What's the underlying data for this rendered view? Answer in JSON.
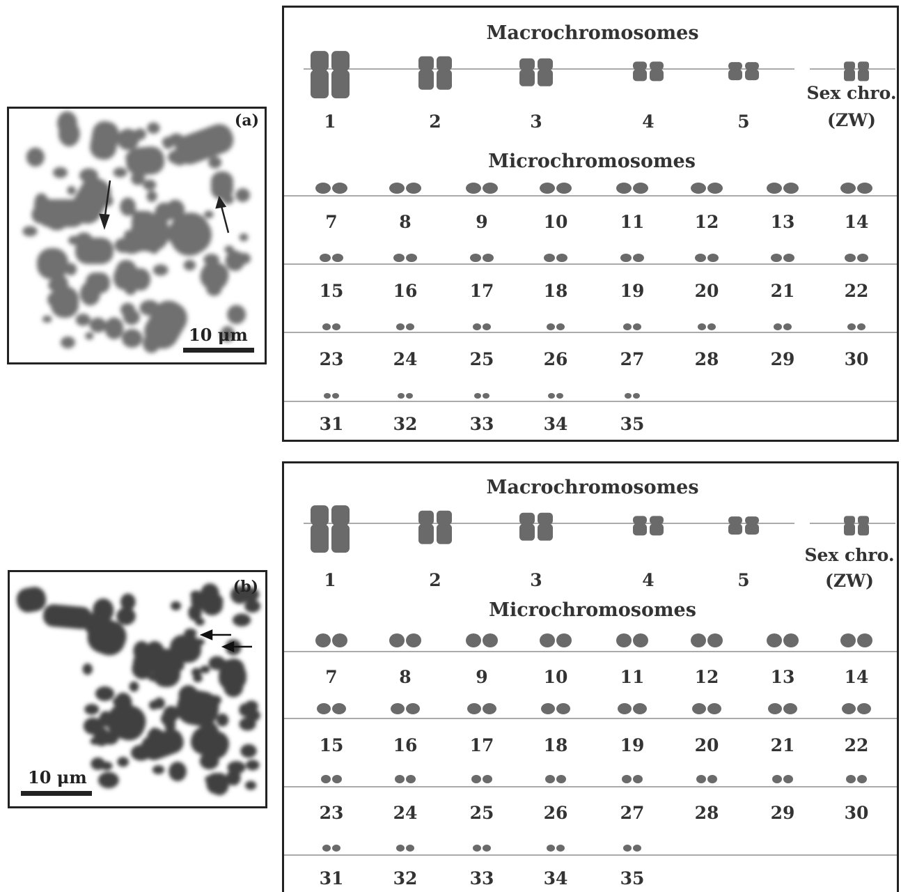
{
  "panel_a": {
    "label": "(a)",
    "scale": "10 μm"
  },
  "panel_b": {
    "label": "(b)",
    "scale": "10 μm"
  },
  "karyotype": {
    "macro_title": "Macrochromosomes",
    "micro_title": "Microchromosomes",
    "macro_numbers": [
      "1",
      "2",
      "3",
      "4",
      "5"
    ],
    "sex_label_1": "Sex chro.",
    "sex_label_2": "(ZW)",
    "micro_rows": [
      [
        "7",
        "8",
        "9",
        "10",
        "11",
        "12",
        "13",
        "14"
      ],
      [
        "15",
        "16",
        "17",
        "18",
        "19",
        "20",
        "21",
        "22"
      ],
      [
        "23",
        "24",
        "25",
        "26",
        "27",
        "28",
        "29",
        "30"
      ],
      [
        "31",
        "32",
        "33",
        "34",
        "35"
      ]
    ]
  },
  "colors": {
    "chromosome": "#6a6a6a",
    "line": "#777777",
    "border": "#222222"
  }
}
